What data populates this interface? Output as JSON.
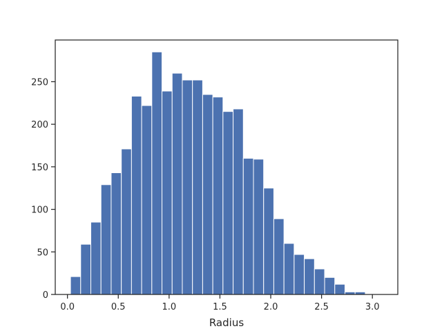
{
  "chart_data": {
    "type": "bar",
    "subtype": "histogram",
    "title": "",
    "xlabel": "Radius",
    "ylabel": "",
    "bar_color": "#4c72b0",
    "bin_width": 0.1,
    "bins": [
      {
        "x0": 0.03,
        "x1": 0.13,
        "count": 21
      },
      {
        "x0": 0.13,
        "x1": 0.23,
        "count": 59
      },
      {
        "x0": 0.23,
        "x1": 0.33,
        "count": 85
      },
      {
        "x0": 0.33,
        "x1": 0.43,
        "count": 129
      },
      {
        "x0": 0.43,
        "x1": 0.53,
        "count": 143
      },
      {
        "x0": 0.53,
        "x1": 0.63,
        "count": 171
      },
      {
        "x0": 0.63,
        "x1": 0.73,
        "count": 233
      },
      {
        "x0": 0.73,
        "x1": 0.83,
        "count": 222
      },
      {
        "x0": 0.83,
        "x1": 0.93,
        "count": 285
      },
      {
        "x0": 0.93,
        "x1": 1.03,
        "count": 239
      },
      {
        "x0": 1.03,
        "x1": 1.13,
        "count": 260
      },
      {
        "x0": 1.13,
        "x1": 1.23,
        "count": 252
      },
      {
        "x0": 1.23,
        "x1": 1.33,
        "count": 252
      },
      {
        "x0": 1.33,
        "x1": 1.43,
        "count": 235
      },
      {
        "x0": 1.43,
        "x1": 1.53,
        "count": 232
      },
      {
        "x0": 1.53,
        "x1": 1.63,
        "count": 215
      },
      {
        "x0": 1.63,
        "x1": 1.73,
        "count": 218
      },
      {
        "x0": 1.73,
        "x1": 1.83,
        "count": 160
      },
      {
        "x0": 1.83,
        "x1": 1.93,
        "count": 159
      },
      {
        "x0": 1.93,
        "x1": 2.03,
        "count": 125
      },
      {
        "x0": 2.03,
        "x1": 2.13,
        "count": 89
      },
      {
        "x0": 2.13,
        "x1": 2.23,
        "count": 60
      },
      {
        "x0": 2.23,
        "x1": 2.33,
        "count": 47
      },
      {
        "x0": 2.33,
        "x1": 2.43,
        "count": 42
      },
      {
        "x0": 2.43,
        "x1": 2.53,
        "count": 30
      },
      {
        "x0": 2.53,
        "x1": 2.63,
        "count": 20
      },
      {
        "x0": 2.63,
        "x1": 2.73,
        "count": 12
      },
      {
        "x0": 2.73,
        "x1": 2.83,
        "count": 3
      },
      {
        "x0": 2.83,
        "x1": 2.93,
        "count": 3
      }
    ],
    "xlim": [
      -0.12,
      3.25
    ],
    "ylim": [
      0,
      299
    ],
    "xticks": [
      0.0,
      0.5,
      1.0,
      1.5,
      2.0,
      2.5,
      3.0
    ],
    "xtick_labels": [
      "0.0",
      "0.5",
      "1.0",
      "1.5",
      "2.0",
      "2.5",
      "3.0"
    ],
    "yticks": [
      0,
      50,
      100,
      150,
      200,
      250
    ],
    "ytick_labels": [
      "0",
      "50",
      "100",
      "150",
      "200",
      "250"
    ],
    "grid": false,
    "legend": "none"
  }
}
